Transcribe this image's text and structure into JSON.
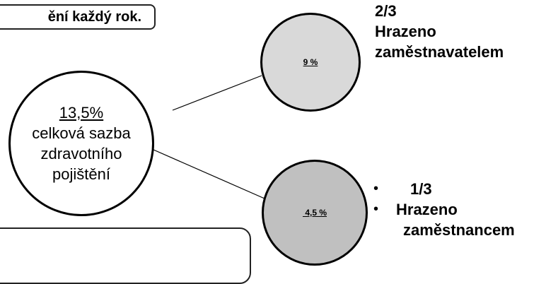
{
  "top_box": {
    "text": "ění každý rok."
  },
  "main_circle": {
    "rate": "13,5%",
    "line1": "celková sazba",
    "line2": "zdravotního",
    "line3": "pojištění"
  },
  "employer": {
    "percent": "9 %",
    "fraction": "2/3",
    "label_line1": "Hrazeno",
    "label_line2": "zaměstnavatelem"
  },
  "employee": {
    "percent": " 4,5 %",
    "fraction": "1/3",
    "label_line1": "Hrazeno",
    "label_line2": "zaměstnancem",
    "bullet_char": "•"
  },
  "colors": {
    "employer_fill": "#d9d9d9",
    "employee_fill": "#c0c0c0",
    "outline": "#000000"
  }
}
